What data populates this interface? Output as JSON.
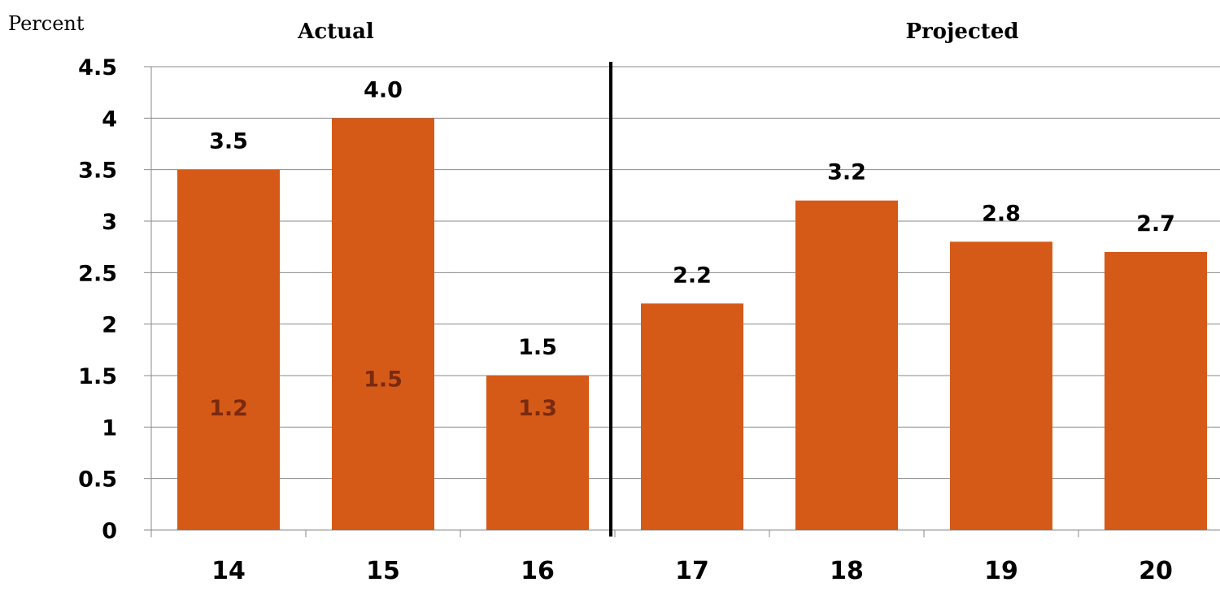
{
  "chart_data": {
    "type": "bar",
    "ylabel": "Percent",
    "ylim": [
      0,
      4.5
    ],
    "yticks": [
      "0",
      "0.5",
      "1",
      "1.5",
      "2",
      "2.5",
      "3",
      "3.5",
      "4",
      "4.5"
    ],
    "ytick_values": [
      0,
      0.5,
      1,
      1.5,
      2,
      2.5,
      3,
      3.5,
      4,
      4.5
    ],
    "categories": [
      "14",
      "15",
      "16",
      "17",
      "18",
      "19",
      "20"
    ],
    "values": [
      3.5,
      4.0,
      1.5,
      2.2,
      3.2,
      2.8,
      2.7
    ],
    "value_labels": [
      "3.5",
      "4.0",
      "1.5",
      "2.2",
      "3.2",
      "2.8",
      "2.7"
    ],
    "inner_labels": [
      "1.2",
      "1.5",
      "1.3",
      "",
      "",
      "",
      ""
    ],
    "period_labels": {
      "actual": "Actual",
      "projected": "Projected"
    },
    "divider_after_index": 2,
    "grid": true,
    "bar_color": "#D55A18",
    "inner_label_color": "#7A2A0E"
  }
}
